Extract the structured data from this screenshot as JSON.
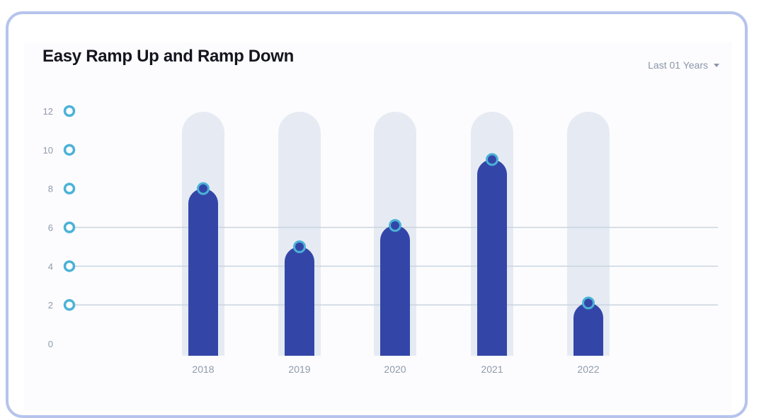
{
  "chart_data": {
    "type": "bar",
    "title": "Easy Ramp Up and Ramp Down",
    "categories": [
      "2018",
      "2019",
      "2020",
      "2021",
      "2022"
    ],
    "values": [
      8,
      5,
      6.1,
      9.5,
      2.1
    ],
    "y_ticks": [
      "12",
      "10",
      "8",
      "6",
      "4",
      "2",
      "0"
    ],
    "ylim": [
      0,
      12
    ],
    "xlabel": "",
    "ylabel": "",
    "grid": "horizontal lines at 2, 4, 6",
    "legend": "none"
  },
  "filter": {
    "label": "Last 01 Years"
  },
  "colors": {
    "bar": "#3346a8",
    "track": "#e6ebf3",
    "marker": "#4bb2d8",
    "grid": "#c9d4e0",
    "tick_text": "#8f9aaa",
    "frame": "#b6c3ec"
  }
}
